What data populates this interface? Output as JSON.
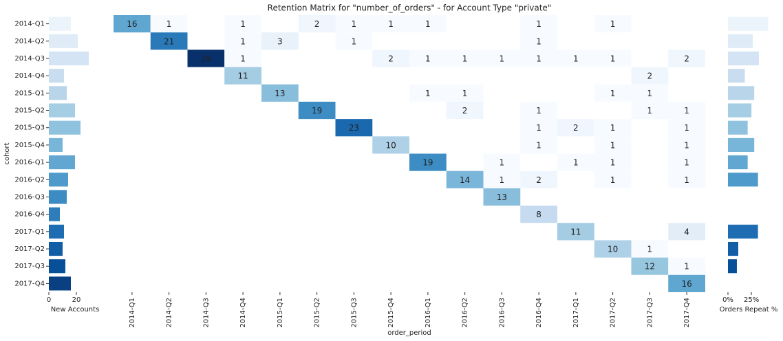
{
  "chart_data": [
    {
      "type": "bar",
      "orientation": "horizontal",
      "x_label": "New Accounts",
      "y_label": "cohort",
      "categories": [
        "2014-Q1",
        "2014-Q2",
        "2014-Q3",
        "2014-Q4",
        "2015-Q1",
        "2015-Q2",
        "2015-Q3",
        "2015-Q4",
        "2016-Q1",
        "2016-Q2",
        "2016-Q3",
        "2016-Q4",
        "2017-Q1",
        "2017-Q2",
        "2017-Q3",
        "2017-Q4"
      ],
      "values": [
        16,
        21,
        29,
        11,
        13,
        19,
        23,
        10,
        19,
        14,
        13,
        8,
        11,
        10,
        12,
        16
      ],
      "xlim": [
        0,
        38
      ],
      "xticks": [
        0,
        20
      ]
    },
    {
      "type": "heatmap",
      "title": "Retention Matrix for \"number_of_orders\" - for Account Type \"private\"",
      "x_label": "order_period",
      "x": [
        "2014-Q1",
        "2014-Q2",
        "2014-Q3",
        "2014-Q4",
        "2015-Q1",
        "2015-Q2",
        "2015-Q3",
        "2015-Q4",
        "2016-Q1",
        "2016-Q2",
        "2016-Q3",
        "2016-Q4",
        "2017-Q1",
        "2017-Q2",
        "2017-Q3",
        "2017-Q4"
      ],
      "colormap": [
        "#f7fbff",
        "#deebf7",
        "#c6dbef",
        "#9ecae1",
        "#6baed6",
        "#4292c6",
        "#2171b5",
        "#08519c",
        "#08306b"
      ],
      "clim": [
        1,
        29
      ],
      "values": [
        [
          16,
          1,
          null,
          1,
          null,
          2,
          1,
          1,
          1,
          null,
          null,
          1,
          null,
          1,
          null,
          null
        ],
        [
          null,
          21,
          null,
          1,
          3,
          null,
          1,
          null,
          null,
          null,
          null,
          1,
          null,
          null,
          null,
          null
        ],
        [
          null,
          null,
          29,
          1,
          null,
          null,
          null,
          2,
          1,
          1,
          1,
          1,
          1,
          1,
          null,
          2
        ],
        [
          null,
          null,
          null,
          11,
          null,
          null,
          null,
          null,
          null,
          null,
          null,
          null,
          null,
          null,
          2,
          null
        ],
        [
          null,
          null,
          null,
          null,
          13,
          null,
          null,
          null,
          1,
          1,
          null,
          null,
          null,
          1,
          1,
          null
        ],
        [
          null,
          null,
          null,
          null,
          null,
          19,
          null,
          null,
          null,
          2,
          null,
          1,
          null,
          null,
          1,
          1
        ],
        [
          null,
          null,
          null,
          null,
          null,
          null,
          23,
          null,
          null,
          null,
          null,
          1,
          2,
          1,
          null,
          1
        ],
        [
          null,
          null,
          null,
          null,
          null,
          null,
          null,
          10,
          null,
          null,
          null,
          1,
          null,
          1,
          null,
          1
        ],
        [
          null,
          null,
          null,
          null,
          null,
          null,
          null,
          null,
          19,
          null,
          1,
          null,
          1,
          1,
          null,
          1
        ],
        [
          null,
          null,
          null,
          null,
          null,
          null,
          null,
          null,
          null,
          14,
          1,
          2,
          null,
          1,
          null,
          1
        ],
        [
          null,
          null,
          null,
          null,
          null,
          null,
          null,
          null,
          null,
          null,
          13,
          null,
          null,
          null,
          null,
          null
        ],
        [
          null,
          null,
          null,
          null,
          null,
          null,
          null,
          null,
          null,
          null,
          null,
          8,
          null,
          null,
          null,
          null
        ],
        [
          null,
          null,
          null,
          null,
          null,
          null,
          null,
          null,
          null,
          null,
          null,
          null,
          11,
          null,
          null,
          4
        ],
        [
          null,
          null,
          null,
          null,
          null,
          null,
          null,
          null,
          null,
          null,
          null,
          null,
          null,
          10,
          1,
          null
        ],
        [
          null,
          null,
          null,
          null,
          null,
          null,
          null,
          null,
          null,
          null,
          null,
          null,
          null,
          null,
          12,
          1
        ],
        [
          null,
          null,
          null,
          null,
          null,
          null,
          null,
          null,
          null,
          null,
          null,
          null,
          null,
          null,
          null,
          16
        ]
      ]
    },
    {
      "type": "bar",
      "orientation": "horizontal",
      "x_label": "Orders Repeat %",
      "values": [
        43,
        26.5,
        33,
        18,
        28,
        25,
        21,
        28,
        21,
        32,
        0,
        0,
        32,
        11,
        9.5,
        0
      ],
      "xlim": [
        0,
        44
      ],
      "xticks": [
        {
          "value": 0,
          "label": "0%"
        },
        {
          "value": 25,
          "label": "25%"
        }
      ]
    }
  ]
}
